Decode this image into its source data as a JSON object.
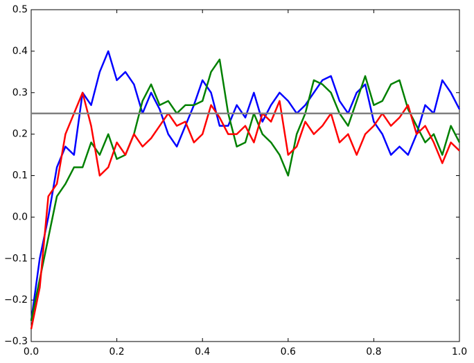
{
  "chart_data": {
    "type": "line",
    "x": [
      0,
      0.02,
      0.04,
      0.06,
      0.08,
      0.1,
      0.12,
      0.14,
      0.16,
      0.18,
      0.2,
      0.22,
      0.24,
      0.26,
      0.28,
      0.3,
      0.32,
      0.34,
      0.36,
      0.38,
      0.4,
      0.42,
      0.44,
      0.46,
      0.48,
      0.5,
      0.52,
      0.54,
      0.56,
      0.58,
      0.6,
      0.62,
      0.64,
      0.66,
      0.68,
      0.7,
      0.72,
      0.74,
      0.76,
      0.78,
      0.8,
      0.82,
      0.84,
      0.86,
      0.88,
      0.9,
      0.92,
      0.94,
      0.96,
      0.98,
      1.0
    ],
    "series": [
      {
        "color": "#0000ff",
        "values": [
          -0.25,
          -0.1,
          0.0,
          0.12,
          0.17,
          0.15,
          0.3,
          0.27,
          0.35,
          0.4,
          0.33,
          0.35,
          0.32,
          0.25,
          0.3,
          0.26,
          0.2,
          0.17,
          0.22,
          0.27,
          0.33,
          0.3,
          0.22,
          0.22,
          0.27,
          0.24,
          0.3,
          0.23,
          0.27,
          0.3,
          0.28,
          0.25,
          0.27,
          0.3,
          0.33,
          0.34,
          0.28,
          0.25,
          0.3,
          0.32,
          0.23,
          0.2,
          0.15,
          0.17,
          0.15,
          0.2,
          0.27,
          0.25,
          0.33,
          0.3,
          0.26
        ]
      },
      {
        "color": "#008000",
        "values": [
          -0.25,
          -0.15,
          -0.05,
          0.05,
          0.08,
          0.12,
          0.12,
          0.18,
          0.15,
          0.2,
          0.14,
          0.15,
          0.2,
          0.28,
          0.32,
          0.27,
          0.28,
          0.25,
          0.27,
          0.27,
          0.28,
          0.35,
          0.38,
          0.25,
          0.17,
          0.18,
          0.25,
          0.2,
          0.18,
          0.15,
          0.1,
          0.2,
          0.25,
          0.33,
          0.32,
          0.3,
          0.25,
          0.22,
          0.28,
          0.34,
          0.27,
          0.28,
          0.32,
          0.33,
          0.26,
          0.22,
          0.18,
          0.2,
          0.15,
          0.22,
          0.18
        ]
      },
      {
        "color": "#ff0000",
        "values": [
          -0.27,
          -0.17,
          0.05,
          0.08,
          0.2,
          0.25,
          0.3,
          0.22,
          0.1,
          0.12,
          0.18,
          0.15,
          0.2,
          0.17,
          0.19,
          0.22,
          0.25,
          0.22,
          0.23,
          0.18,
          0.2,
          0.27,
          0.24,
          0.2,
          0.2,
          0.22,
          0.18,
          0.25,
          0.23,
          0.28,
          0.15,
          0.17,
          0.23,
          0.2,
          0.22,
          0.25,
          0.18,
          0.2,
          0.15,
          0.2,
          0.22,
          0.25,
          0.22,
          0.24,
          0.27,
          0.2,
          0.22,
          0.18,
          0.13,
          0.18,
          0.16
        ]
      }
    ],
    "hline": {
      "y": 0.25,
      "color": "#808080"
    },
    "xlim": [
      0,
      1.0
    ],
    "xticks": [
      {
        "value": 0,
        "label": "0.0"
      },
      0.2,
      0.4,
      0.6,
      0.8,
      {
        "value": 1.0,
        "label": "1.0"
      }
    ],
    "ylim": [
      -0.3,
      0.5
    ],
    "yticks": [
      {
        "value": -0.3,
        "label": "−0.3"
      },
      {
        "value": -0.2,
        "label": "−0.2"
      },
      {
        "value": -0.1,
        "label": "−0.1"
      },
      {
        "value": 0,
        "label": "0.0"
      },
      0.1,
      0.2,
      0.3,
      0.4,
      0.5
    ]
  }
}
